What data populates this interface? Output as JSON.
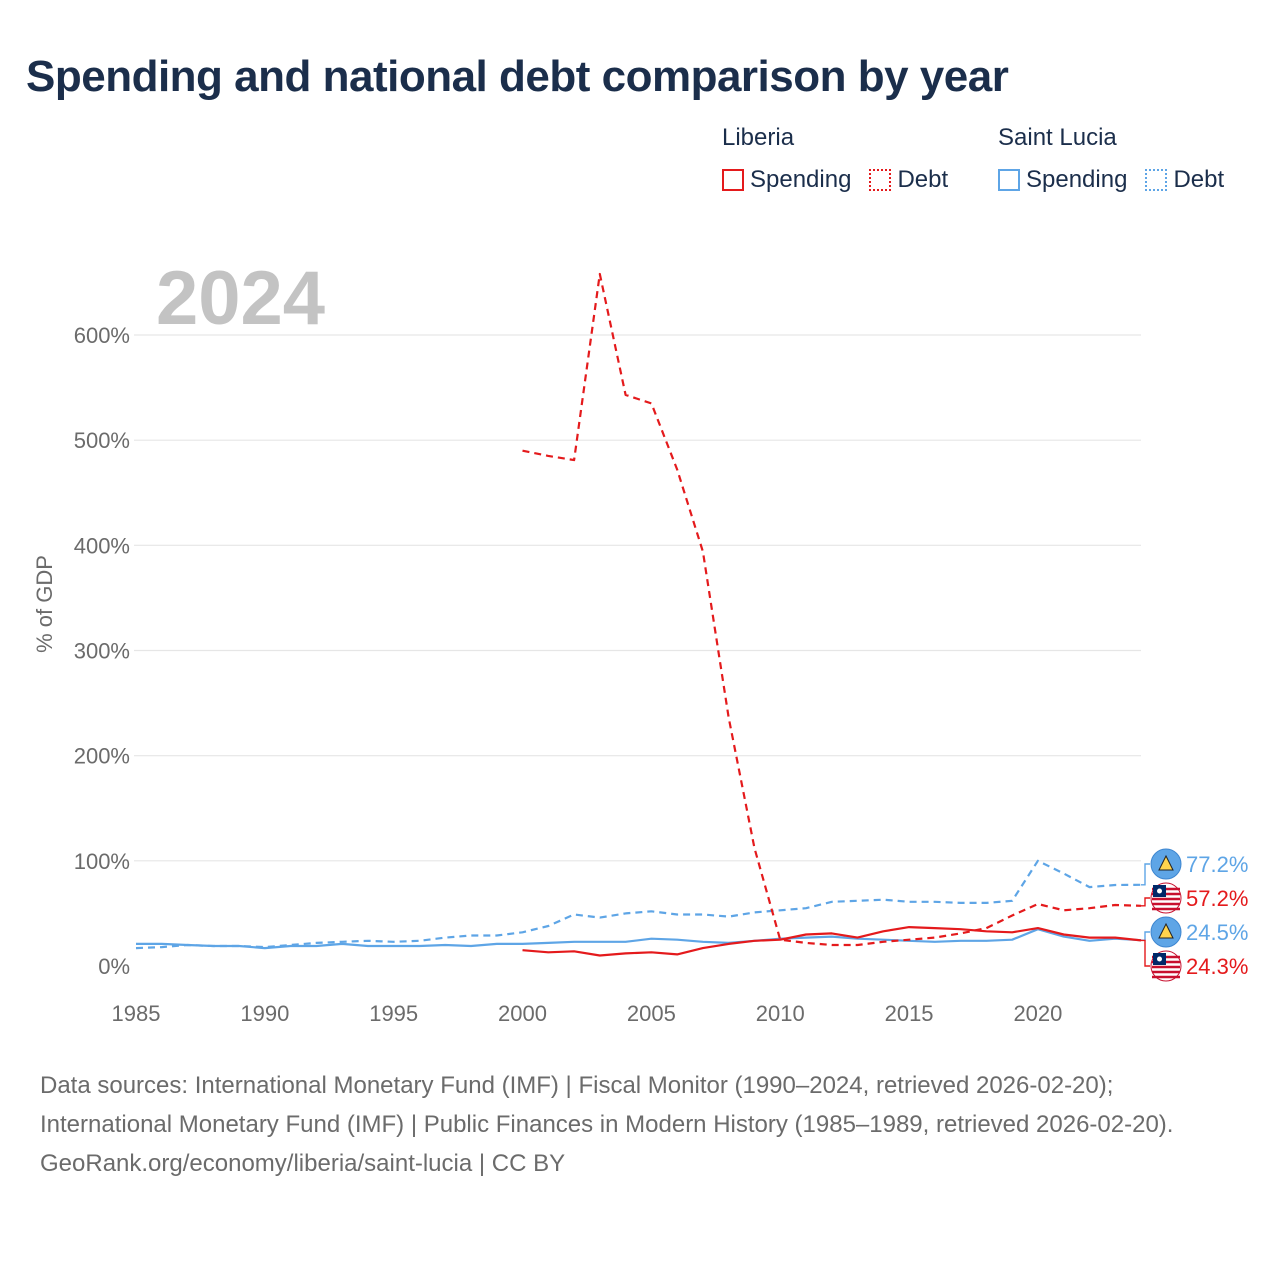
{
  "colors": {
    "liberia": "#e41a1c",
    "saint_lucia": "#5ea5e6",
    "title": "#1b2e4b",
    "axis_text": "#6b6b6b",
    "year_watermark": "#c3c3c3",
    "grid": "#e6e6e6"
  },
  "legend": {
    "groups": [
      {
        "name": "Liberia",
        "spending_label": "Spending",
        "debt_label": "Debt"
      },
      {
        "name": "Saint Lucia",
        "spending_label": "Spending",
        "debt_label": "Debt"
      }
    ]
  },
  "footer": {
    "sources": "Data sources: International Monetary Fund (IMF) | Fiscal Monitor (1990–2024, retrieved 2026-02-20); International Monetary Fund (IMF) | Public Finances in Modern History (1985–1989, retrieved 2026-02-20).",
    "credit": "GeoRank.org/economy/liberia/saint-lucia | CC BY"
  },
  "chart_data": {
    "type": "line",
    "title": "Spending and national debt comparison by year",
    "year_label": "2024",
    "ylabel": "% of GDP",
    "xlabel": "",
    "xlim": [
      1985,
      2024
    ],
    "ylim": [
      0,
      650
    ],
    "x_ticks": [
      1985,
      1990,
      1995,
      2000,
      2005,
      2010,
      2015,
      2020
    ],
    "y_ticks": [
      0,
      100,
      200,
      300,
      400,
      500,
      600
    ],
    "y_tick_labels": [
      "0%",
      "100%",
      "200%",
      "300%",
      "400%",
      "500%",
      "600%"
    ],
    "grid": true,
    "series": [
      {
        "name": "Saint Lucia Debt",
        "country": "saint_lucia",
        "style": "dashed",
        "x": [
          1985,
          1986,
          1987,
          1988,
          1989,
          1990,
          1991,
          1992,
          1993,
          1994,
          1995,
          1996,
          1997,
          1998,
          1999,
          2000,
          2001,
          2002,
          2003,
          2004,
          2005,
          2006,
          2007,
          2008,
          2009,
          2010,
          2011,
          2012,
          2013,
          2014,
          2015,
          2016,
          2017,
          2018,
          2019,
          2020,
          2021,
          2022,
          2023,
          2024
        ],
        "values": [
          17,
          18,
          20,
          19,
          19,
          18,
          20,
          22,
          23,
          24,
          23,
          24,
          27,
          29,
          29,
          32,
          38,
          49,
          46,
          50,
          52,
          49,
          49,
          47,
          51,
          53,
          55,
          61,
          62,
          63,
          61,
          61,
          60,
          60,
          62,
          100,
          88,
          75,
          77,
          77.2
        ]
      },
      {
        "name": "Saint Lucia Spending",
        "country": "saint_lucia",
        "style": "solid",
        "x": [
          1985,
          1986,
          1987,
          1988,
          1989,
          1990,
          1991,
          1992,
          1993,
          1994,
          1995,
          1996,
          1997,
          1998,
          1999,
          2000,
          2001,
          2002,
          2003,
          2004,
          2005,
          2006,
          2007,
          2008,
          2009,
          2010,
          2011,
          2012,
          2013,
          2014,
          2015,
          2016,
          2017,
          2018,
          2019,
          2020,
          2021,
          2022,
          2023,
          2024
        ],
        "values": [
          21,
          21,
          20,
          19,
          19,
          17,
          19,
          19,
          21,
          19,
          19,
          19,
          20,
          19,
          21,
          21,
          22,
          23,
          23,
          23,
          26,
          25,
          23,
          22,
          24,
          26,
          27,
          28,
          26,
          25,
          24,
          23,
          24,
          24,
          25,
          35,
          28,
          24,
          26,
          24.5
        ]
      },
      {
        "name": "Liberia Debt",
        "country": "liberia",
        "style": "dashed",
        "x": [
          2000,
          2001,
          2002,
          2003,
          2004,
          2005,
          2006,
          2007,
          2008,
          2009,
          2010,
          2011,
          2012,
          2013,
          2014,
          2015,
          2016,
          2017,
          2018,
          2019,
          2020,
          2021,
          2022,
          2023,
          2024
        ],
        "values": [
          490,
          485,
          481,
          658,
          543,
          535,
          472,
          394,
          236,
          112,
          25,
          22,
          20,
          20,
          23,
          25,
          27,
          31,
          36,
          48,
          59,
          53,
          55,
          58,
          57.2
        ]
      },
      {
        "name": "Liberia Spending",
        "country": "liberia",
        "style": "solid",
        "x": [
          2000,
          2001,
          2002,
          2003,
          2004,
          2005,
          2006,
          2007,
          2008,
          2009,
          2010,
          2011,
          2012,
          2013,
          2014,
          2015,
          2016,
          2017,
          2018,
          2019,
          2020,
          2021,
          2022,
          2023,
          2024
        ],
        "values": [
          15,
          13,
          14,
          10,
          12,
          13,
          11,
          17,
          21,
          24,
          25,
          30,
          31,
          27,
          33,
          37,
          36,
          35,
          33,
          32,
          36,
          30,
          27,
          27,
          24.3
        ]
      }
    ],
    "end_labels": [
      {
        "country": "saint_lucia",
        "text": "77.2%",
        "value": 77.2
      },
      {
        "country": "liberia",
        "text": "57.2%",
        "value": 57.2
      },
      {
        "country": "saint_lucia",
        "text": "24.5%",
        "value": 24.5
      },
      {
        "country": "liberia",
        "text": "24.3%",
        "value": 24.3
      }
    ]
  }
}
